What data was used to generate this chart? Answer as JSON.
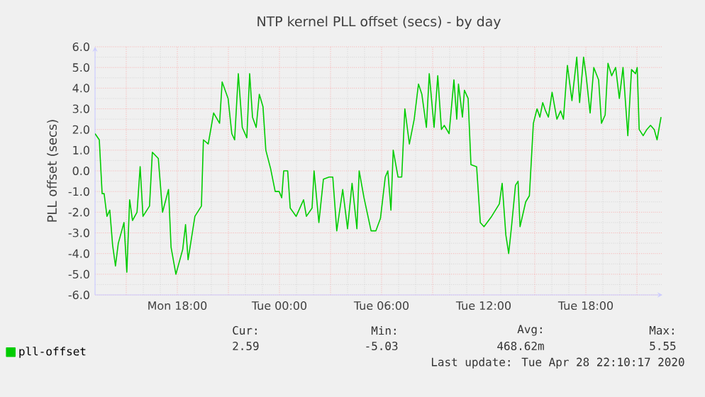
{
  "chart_data": {
    "type": "line",
    "title": "NTP kernel PLL offset (secs) - by day",
    "ylabel": "PLL offset (secs)",
    "xlim": [
      "2020-04-27T13:10",
      "2020-04-28T22:30"
    ],
    "ylim": [
      -6,
      6
    ],
    "xticks": [
      {
        "value": "2020-04-27T15:00",
        "label": null
      },
      {
        "value": "2020-04-27T18:00",
        "label": "Mon 18:00"
      },
      {
        "value": "2020-04-27T21:00",
        "label": null
      },
      {
        "value": "2020-04-28T00:00",
        "label": "Tue 00:00"
      },
      {
        "value": "2020-04-28T03:00",
        "label": null
      },
      {
        "value": "2020-04-28T06:00",
        "label": "Tue 06:00"
      },
      {
        "value": "2020-04-28T09:00",
        "label": null
      },
      {
        "value": "2020-04-28T12:00",
        "label": "Tue 12:00"
      },
      {
        "value": "2020-04-28T15:00",
        "label": null
      },
      {
        "value": "2020-04-28T18:00",
        "label": "Tue 18:00"
      },
      {
        "value": "2020-04-28T21:00",
        "label": null
      }
    ],
    "yticks": [
      {
        "value": -6,
        "label": "-6.0"
      },
      {
        "value": -5,
        "label": "-5.0"
      },
      {
        "value": -4,
        "label": "-4.0"
      },
      {
        "value": -3,
        "label": "-3.0"
      },
      {
        "value": -2,
        "label": "-2.0"
      },
      {
        "value": -1,
        "label": "-1.0"
      },
      {
        "value": 0,
        "label": "0.0"
      },
      {
        "value": 1,
        "label": "1.0"
      },
      {
        "value": 2,
        "label": "2.0"
      },
      {
        "value": 3,
        "label": "3.0"
      },
      {
        "value": 4,
        "label": "4.0"
      },
      {
        "value": 5,
        "label": "5.0"
      },
      {
        "value": 6,
        "label": "6.0"
      }
    ],
    "grid": true,
    "legend": "bottom",
    "annotations": [
      "Cur:",
      "2.59",
      "Min:",
      "-5.03",
      "Avg:",
      "468.62m",
      "Max:",
      "5.55",
      "Last update: Tue Apr 28 22:10:17 2020"
    ],
    "series": [
      {
        "name": "pll-offset",
        "color": "#00cc00",
        "x": [
          "2020-04-27T13:10",
          "2020-04-27T13:25",
          "2020-04-27T13:35",
          "2020-04-27T13:42",
          "2020-04-27T13:52",
          "2020-04-27T14:02",
          "2020-04-27T14:12",
          "2020-04-27T14:22",
          "2020-04-27T14:32",
          "2020-04-27T14:52",
          "2020-04-27T15:02",
          "2020-04-27T15:12",
          "2020-04-27T15:22",
          "2020-04-27T15:38",
          "2020-04-27T15:49",
          "2020-04-27T15:59",
          "2020-04-27T16:22",
          "2020-04-27T16:32",
          "2020-04-27T16:53",
          "2020-04-27T17:08",
          "2020-04-27T17:29",
          "2020-04-27T17:38",
          "2020-04-27T17:55",
          "2020-04-27T18:19",
          "2020-04-27T18:29",
          "2020-04-27T18:38",
          "2020-04-27T19:02",
          "2020-04-27T19:25",
          "2020-04-27T19:32",
          "2020-04-27T19:49",
          "2020-04-27T20:08",
          "2020-04-27T20:29",
          "2020-04-27T20:38",
          "2020-04-27T20:59",
          "2020-04-27T21:12",
          "2020-04-27T21:22",
          "2020-04-27T21:35",
          "2020-04-27T21:49",
          "2020-04-27T22:05",
          "2020-04-27T22:15",
          "2020-04-27T22:25",
          "2020-04-27T22:38",
          "2020-04-27T22:49",
          "2020-04-27T23:02",
          "2020-04-27T23:12",
          "2020-04-27T23:29",
          "2020-04-27T23:45",
          "2020-04-27T23:59",
          "2020-04-28T00:08",
          "2020-04-28T00:15",
          "2020-04-28T00:29",
          "2020-04-28T00:38",
          "2020-04-28T00:59",
          "2020-04-28T01:25",
          "2020-04-28T01:35",
          "2020-04-28T01:55",
          "2020-04-28T02:02",
          "2020-04-28T02:19",
          "2020-04-28T02:35",
          "2020-04-28T02:55",
          "2020-04-28T03:08",
          "2020-04-28T03:22",
          "2020-04-28T03:43",
          "2020-04-28T04:00",
          "2020-04-28T04:16",
          "2020-04-28T04:33",
          "2020-04-28T04:41",
          "2020-04-28T04:58",
          "2020-04-28T05:23",
          "2020-04-28T05:40",
          "2020-04-28T05:56",
          "2020-04-28T06:13",
          "2020-04-28T06:22",
          "2020-04-28T06:33",
          "2020-04-28T06:41",
          "2020-04-28T06:58",
          "2020-04-28T07:11",
          "2020-04-28T07:22",
          "2020-04-28T07:38",
          "2020-04-28T07:55",
          "2020-04-28T08:10",
          "2020-04-28T08:22",
          "2020-04-28T08:38",
          "2020-04-28T08:48",
          "2020-04-28T09:05",
          "2020-04-28T09:18",
          "2020-04-28T09:31",
          "2020-04-28T09:41",
          "2020-04-28T09:58",
          "2020-04-28T10:15",
          "2020-04-28T10:25",
          "2020-04-28T10:31",
          "2020-04-28T10:45",
          "2020-04-28T10:52",
          "2020-04-28T11:05",
          "2020-04-28T11:15",
          "2020-04-28T11:35",
          "2020-04-28T11:48",
          "2020-04-28T12:01",
          "2020-04-28T12:28",
          "2020-04-28T12:55",
          "2020-04-28T13:05",
          "2020-04-28T13:18",
          "2020-04-28T13:28",
          "2020-04-28T13:38",
          "2020-04-28T13:52",
          "2020-04-28T14:01",
          "2020-04-28T14:08",
          "2020-04-28T14:28",
          "2020-04-28T14:41",
          "2020-04-28T14:55",
          "2020-04-28T15:08",
          "2020-04-28T15:18",
          "2020-04-28T15:28",
          "2020-04-28T15:38",
          "2020-04-28T15:48",
          "2020-04-28T16:01",
          "2020-04-28T16:18",
          "2020-04-28T16:31",
          "2020-04-28T16:41",
          "2020-04-28T16:55",
          "2020-04-28T17:11",
          "2020-04-28T17:28",
          "2020-04-28T17:38",
          "2020-04-28T17:52",
          "2020-04-28T18:01",
          "2020-04-28T18:15",
          "2020-04-28T18:28",
          "2020-04-28T18:45",
          "2020-04-28T18:55",
          "2020-04-28T19:08",
          "2020-04-28T19:18",
          "2020-04-28T19:31",
          "2020-04-28T19:45",
          "2020-04-28T19:58",
          "2020-04-28T20:11",
          "2020-04-28T20:28",
          "2020-04-28T20:41",
          "2020-04-28T20:55",
          "2020-04-28T21:01",
          "2020-04-28T21:08",
          "2020-04-28T21:22",
          "2020-04-28T21:35",
          "2020-04-28T21:48",
          "2020-04-28T22:01",
          "2020-04-28T22:11",
          "2020-04-28T22:25"
        ],
        "values": [
          1.8,
          1.5,
          -1.1,
          -1.1,
          -2.2,
          -1.9,
          -3.6,
          -4.6,
          -3.5,
          -2.5,
          -4.9,
          -1.4,
          -2.4,
          -2.0,
          0.2,
          -2.2,
          -1.7,
          0.9,
          0.6,
          -2.0,
          -0.9,
          -3.7,
          -5.0,
          -3.8,
          -2.6,
          -4.3,
          -2.2,
          -1.7,
          1.5,
          1.3,
          2.8,
          2.3,
          4.3,
          3.5,
          1.8,
          1.5,
          4.7,
          2.1,
          1.6,
          4.7,
          2.6,
          2.1,
          3.7,
          3.1,
          1.0,
          0.1,
          -1.0,
          -1.0,
          -1.3,
          0.0,
          0.0,
          -1.8,
          -2.2,
          -1.4,
          -2.2,
          -1.8,
          0.0,
          -2.5,
          -0.4,
          -0.3,
          -0.3,
          -2.9,
          -0.9,
          -2.8,
          -0.6,
          -2.8,
          0.0,
          -1.3,
          -2.9,
          -2.9,
          -2.3,
          -0.3,
          0.0,
          -1.9,
          1.0,
          -0.3,
          -0.3,
          3.0,
          1.3,
          2.5,
          4.2,
          3.7,
          2.1,
          4.7,
          2.1,
          4.6,
          2.0,
          2.2,
          1.8,
          4.4,
          2.5,
          4.2,
          2.6,
          3.9,
          3.5,
          0.3,
          0.2,
          -2.5,
          -2.7,
          -2.2,
          -1.6,
          -0.6,
          -3.1,
          -4.0,
          -2.7,
          -0.7,
          -0.5,
          -2.7,
          -1.5,
          -1.2,
          2.3,
          3.0,
          2.6,
          3.3,
          2.9,
          2.6,
          3.8,
          2.5,
          2.9,
          2.5,
          5.1,
          3.4,
          5.5,
          3.3,
          5.5,
          4.6,
          2.8,
          5.0,
          4.4,
          2.3,
          2.7,
          5.2,
          4.6,
          5.0,
          3.5,
          5.0,
          1.7,
          4.9,
          4.7,
          5.0,
          2.0,
          1.7,
          2.0,
          2.2,
          2.0,
          1.5,
          2.6
        ]
      }
    ]
  }
}
